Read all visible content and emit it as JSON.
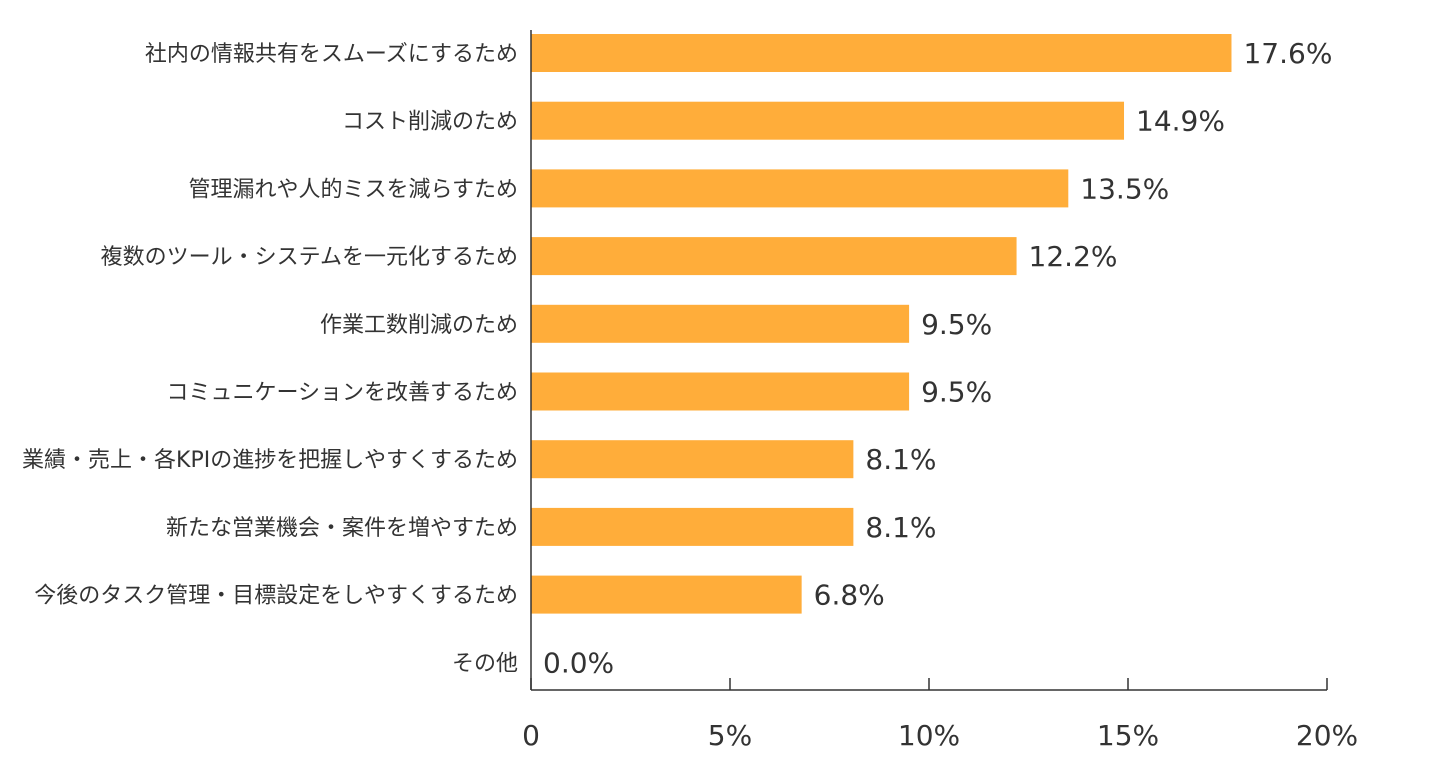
{
  "chart_data": {
    "type": "bar",
    "orientation": "horizontal",
    "categories": [
      "社内の情報共有をスムーズにするため",
      "コスト削減のため",
      "管理漏れや人的ミスを減らすため",
      "複数のツール・システムを一元化するため",
      "作業工数削減のため",
      "コミュニケーションを改善するため",
      "業績・売上・各KPIの進捗を把握しやすくするため",
      "新たな営業機会・案件を増やすため",
      "今後のタスク管理・目標設定をしやすくするため",
      "その他"
    ],
    "values": [
      17.6,
      14.9,
      13.5,
      12.2,
      9.5,
      9.5,
      8.1,
      8.1,
      6.8,
      0.0
    ],
    "value_labels": [
      "17.6%",
      "14.9%",
      "13.5%",
      "12.2%",
      "9.5%",
      "9.5%",
      "8.1%",
      "8.1%",
      "6.8%",
      "0.0%"
    ],
    "xlim": [
      0,
      20
    ],
    "xticks": [
      0,
      5,
      10,
      15,
      20
    ],
    "xtick_labels": [
      "0",
      "5%",
      "10%",
      "15%",
      "20%"
    ],
    "title": "",
    "xlabel": "",
    "ylabel": "",
    "grid": false,
    "colors": {
      "bar": "#FFAD3A",
      "axis": "#333333",
      "text": "#333333"
    }
  }
}
